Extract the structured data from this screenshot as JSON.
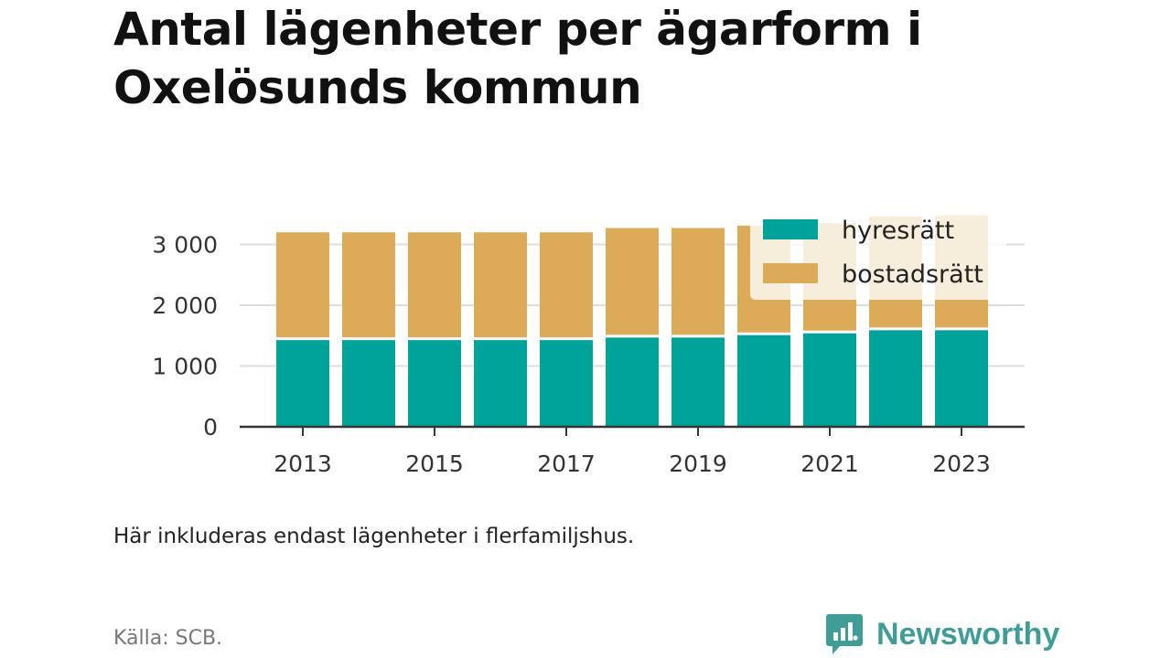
{
  "header": {
    "title": "Antal lägenheter per ägarform i Oxelösunds kommun"
  },
  "footer": {
    "note": "Här inkluderas endast lägenheter i flerfamiljshus.",
    "source": "Källa: SCB.",
    "brand": "Newsworthy",
    "brand_color": "#3f9c96"
  },
  "chart_data": {
    "type": "bar",
    "stacked": true,
    "categories": [
      "2013",
      "2014",
      "2015",
      "2016",
      "2017",
      "2018",
      "2019",
      "2020",
      "2021",
      "2022",
      "2023"
    ],
    "x_tick_labels": [
      "2013",
      "2015",
      "2017",
      "2019",
      "2021",
      "2023"
    ],
    "series": [
      {
        "name": "hyresrätt",
        "color": "#00a39a",
        "values": [
          1450,
          1450,
          1450,
          1450,
          1450,
          1490,
          1490,
          1530,
          1560,
          1610,
          1610
        ]
      },
      {
        "name": "bostadsrätt",
        "color": "#dbab5a",
        "values": [
          1750,
          1750,
          1750,
          1750,
          1750,
          1780,
          1780,
          1780,
          1790,
          1850,
          1870
        ]
      }
    ],
    "y_ticks": [
      0,
      1000,
      2000,
      3000
    ],
    "y_tick_labels": [
      "0",
      "1 000",
      "2 000",
      "3 000"
    ],
    "ylim": [
      0,
      3500
    ],
    "grid": true,
    "legend": {
      "placement": "top-right"
    }
  }
}
